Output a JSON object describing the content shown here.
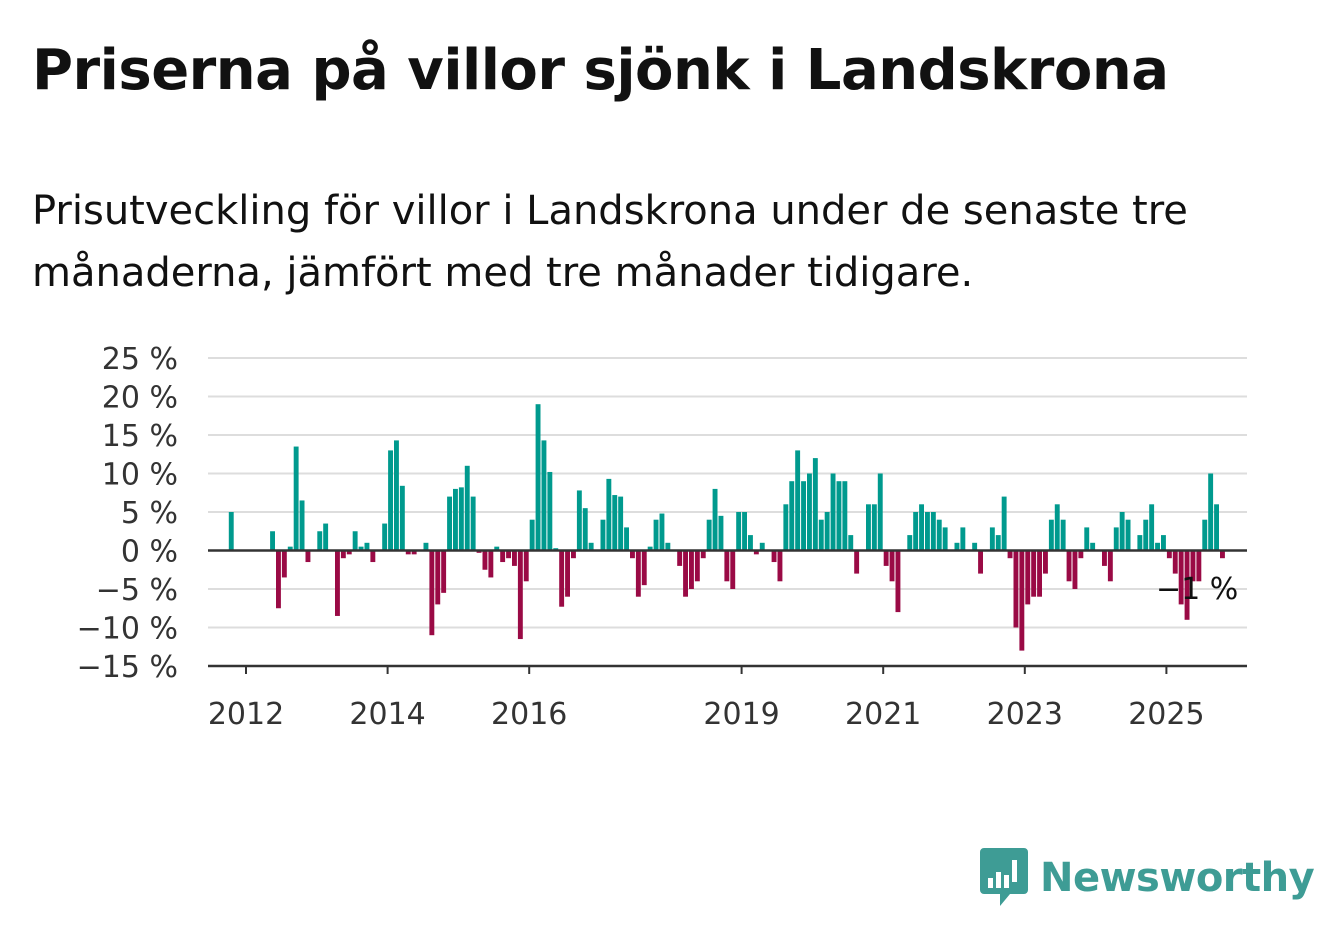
{
  "title": "Priserna på villor sjönk i Landskrona",
  "subtitle": "Prisutveckling för villor i Landskrona under de senaste tre månaderna, jämfört med tre månader tidigare.",
  "brand": "Newsworthy",
  "colors": {
    "positive": "#009a8e",
    "negative": "#9a0a45",
    "grid": "#dddddd",
    "axis": "#333333",
    "brand": "#3e9c95"
  },
  "chart_data": {
    "type": "bar",
    "x_start": "2012-01",
    "x_step": "month",
    "x_ticks": [
      "2012",
      "2014",
      "2016",
      "2019",
      "2021",
      "2023",
      "2025"
    ],
    "y_ticks": [
      "−15 %",
      "−10 %",
      "−5 %",
      "0 %",
      "5 %",
      "10 %",
      "15 %",
      "20 %",
      "25 %"
    ],
    "ylim": [
      -15,
      25
    ],
    "y_unit": "%",
    "last_value_label": "−1 %",
    "grid": true,
    "values": [
      0,
      0,
      5,
      0,
      0,
      0,
      0,
      0,
      0,
      2.5,
      -7.5,
      -3.5,
      0.5,
      13.5,
      6.5,
      -1.5,
      0,
      2.5,
      3.5,
      0,
      -8.5,
      -1,
      -0.5,
      2.5,
      0.5,
      1,
      -1.5,
      0,
      3.5,
      13,
      14.3,
      8.4,
      -0.5,
      -0.5,
      0,
      1,
      -11,
      -7,
      -5.5,
      7,
      8,
      8.2,
      11,
      7,
      -0.3,
      -2.5,
      -3.5,
      0.5,
      -1.5,
      -1,
      -2,
      -11.5,
      -4,
      4,
      19,
      14.3,
      10.2,
      0.3,
      -7.3,
      -6,
      -1,
      7.8,
      5.5,
      1,
      0,
      4,
      9.3,
      7.2,
      7,
      3,
      -1,
      -6,
      -4.5,
      0.5,
      4,
      4.8,
      1,
      0,
      -2,
      -6,
      -5,
      -4,
      -1,
      4,
      8,
      4.5,
      -4,
      -5,
      5,
      5,
      2,
      -0.5,
      1,
      0,
      -1.5,
      -4,
      6,
      9,
      13,
      9,
      10,
      12,
      4,
      5,
      10,
      9,
      9,
      2,
      -3,
      0,
      6,
      6,
      10,
      -2,
      -4,
      -8,
      0,
      2,
      5,
      6,
      5,
      5,
      4,
      3,
      0,
      1,
      3,
      0,
      1,
      -3,
      0,
      3,
      2,
      7,
      -1,
      -10,
      -13,
      -7,
      -6,
      -6,
      -3,
      4,
      6,
      4,
      -4,
      -5,
      -1,
      3,
      1,
      0,
      -2,
      -4,
      3,
      5,
      4,
      0,
      2,
      4,
      6,
      1,
      2,
      -1,
      -3,
      -7,
      -9,
      -4,
      -4,
      4,
      10,
      6,
      -1
    ]
  }
}
